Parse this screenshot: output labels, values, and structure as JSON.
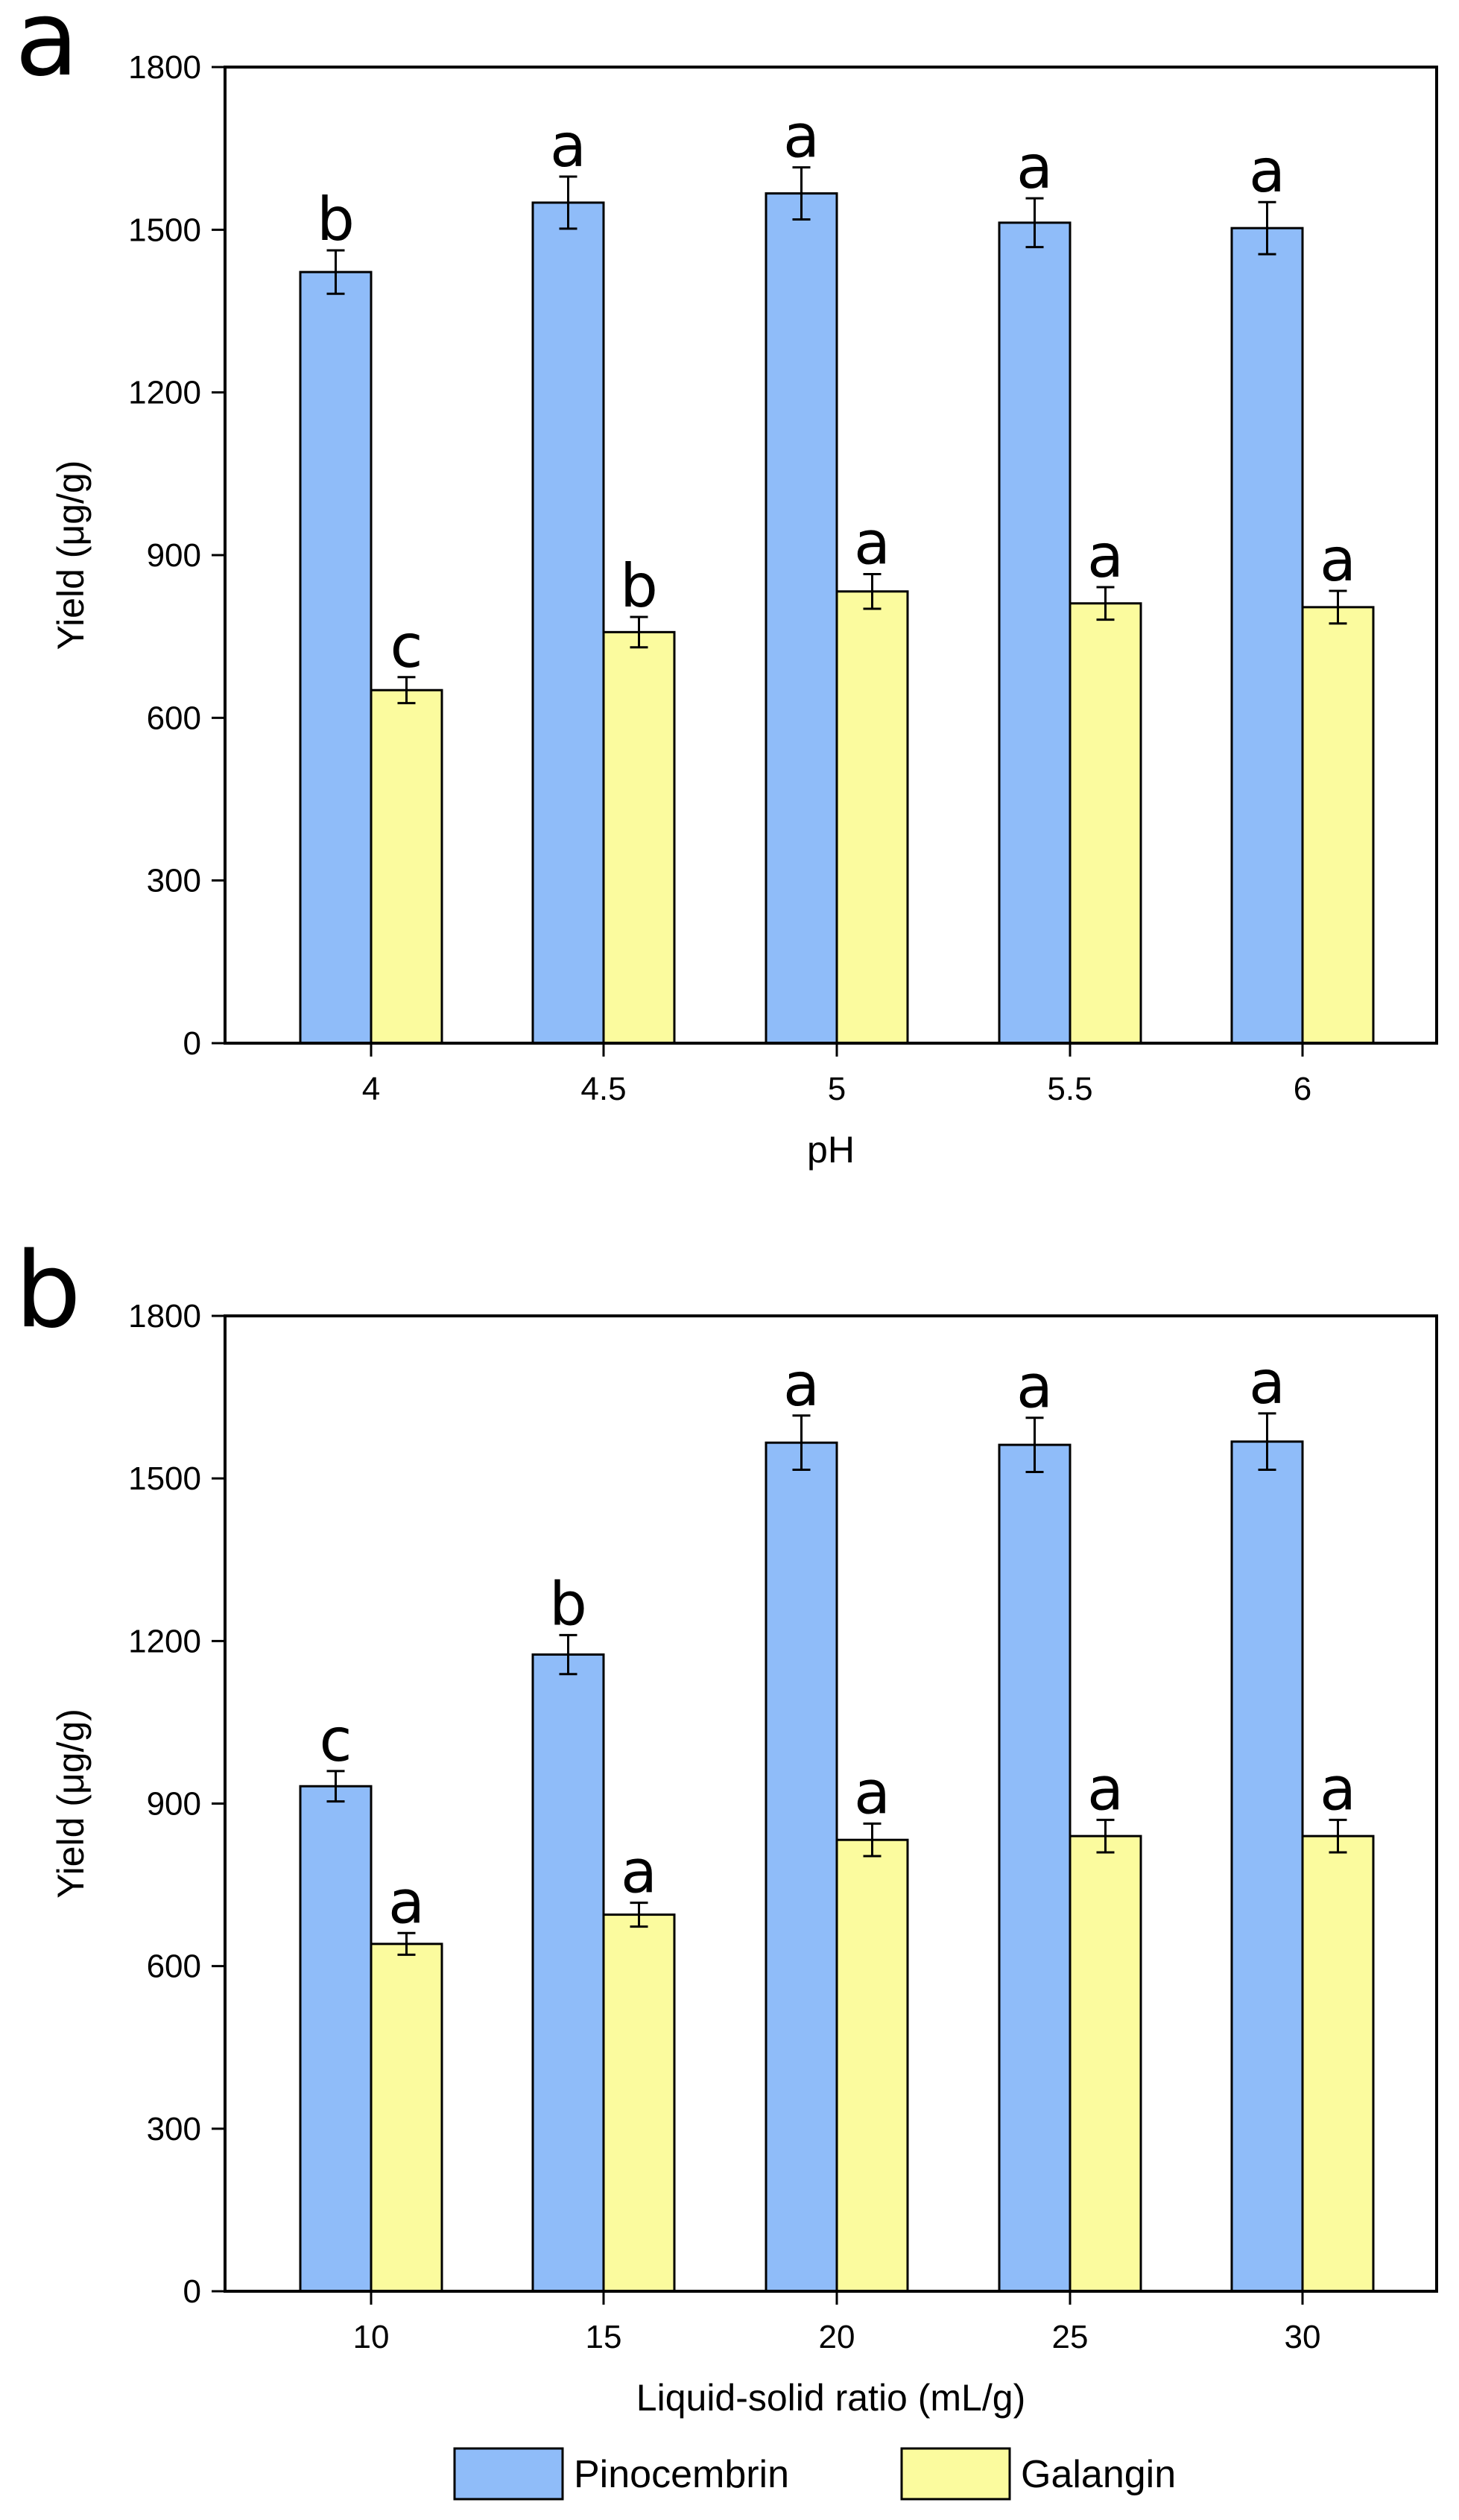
{
  "colors": {
    "pinocembrin": "#8fbcf9",
    "galangin": "#fbfb9e",
    "outline": "#000000"
  },
  "legend": {
    "items": [
      {
        "label": "Pinocembrin",
        "color": "#8fbcf9"
      },
      {
        "label": "Galangin",
        "color": "#fbfb9e"
      }
    ]
  },
  "chart_data": [
    {
      "type": "bar",
      "panel": "a",
      "xlabel": "pH",
      "ylabel": "Yield (μg/g)",
      "ylim": [
        0,
        1800
      ],
      "yticks": [
        0,
        300,
        600,
        900,
        1200,
        1500,
        1800
      ],
      "categories": [
        "4",
        "4.5",
        "5",
        "5.5",
        "6"
      ],
      "series": [
        {
          "name": "Pinocembrin",
          "values": [
            1422,
            1550,
            1567,
            1513,
            1503
          ],
          "errors": [
            40,
            48,
            48,
            45,
            48
          ],
          "letters": [
            "b",
            "a",
            "a",
            "a",
            "a"
          ]
        },
        {
          "name": "Galangin",
          "values": [
            651,
            758,
            833,
            811,
            804
          ],
          "errors": [
            24,
            28,
            32,
            30,
            30
          ],
          "letters": [
            "c",
            "b",
            "a",
            "a",
            "a"
          ]
        }
      ]
    },
    {
      "type": "bar",
      "panel": "b",
      "xlabel": "Liquid-solid ratio (mL/g)",
      "ylabel": "Yield (μg/g)",
      "ylim": [
        0,
        1800
      ],
      "yticks": [
        0,
        300,
        600,
        900,
        1200,
        1500,
        1800
      ],
      "categories": [
        "10",
        "15",
        "20",
        "25",
        "30"
      ],
      "series": [
        {
          "name": "Pinocembrin",
          "values": [
            932,
            1175,
            1566,
            1562,
            1568
          ],
          "errors": [
            28,
            36,
            50,
            50,
            52
          ],
          "letters": [
            "c",
            "b",
            "a",
            "a",
            "a"
          ]
        },
        {
          "name": "Galangin",
          "values": [
            641,
            695,
            833,
            840,
            840
          ],
          "errors": [
            20,
            22,
            30,
            30,
            30
          ],
          "letters": [
            "a",
            "a",
            "a",
            "a",
            "a"
          ]
        }
      ]
    }
  ]
}
